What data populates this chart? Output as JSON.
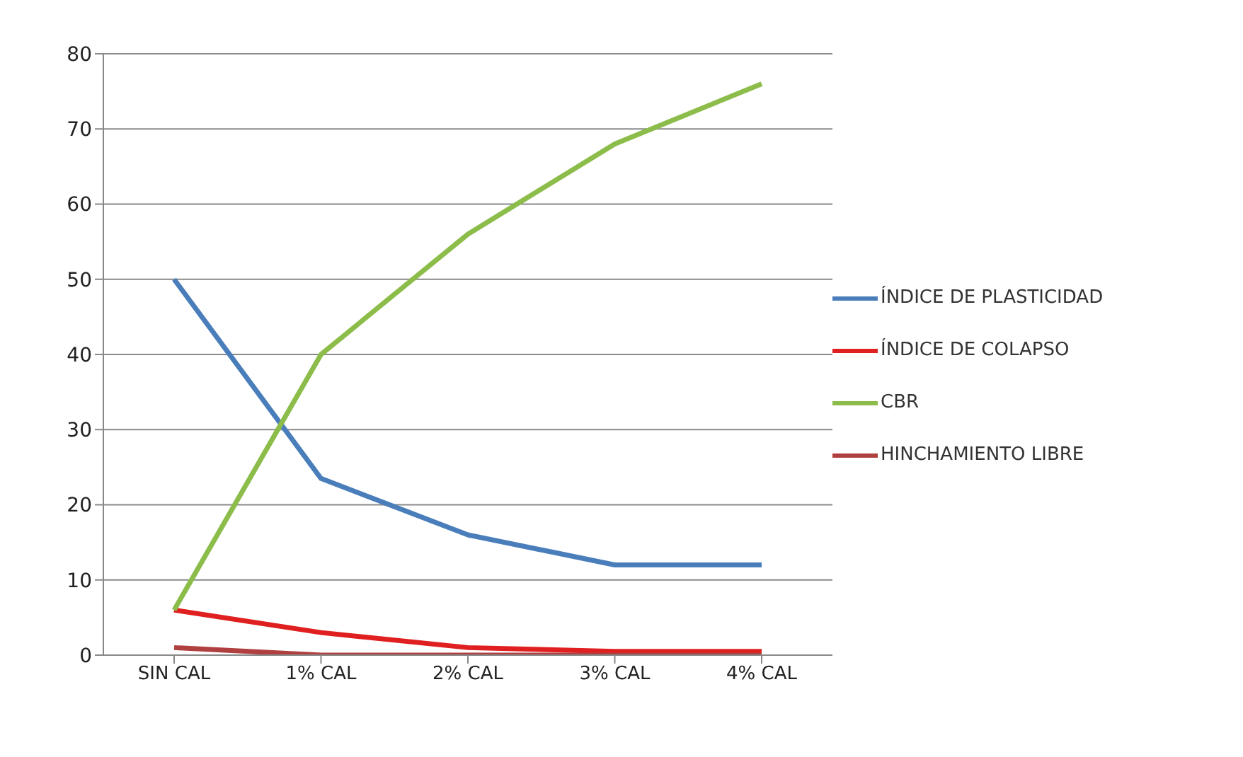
{
  "chart_data": {
    "type": "line",
    "categories": [
      "SIN CAL",
      "1% CAL",
      "2% CAL",
      "3% CAL",
      "4% CAL"
    ],
    "series": [
      {
        "name": "ÍNDICE DE PLASTICIDAD",
        "color": "#4a7ebb",
        "values": [
          50,
          23.5,
          16,
          12,
          12
        ]
      },
      {
        "name": "ÍNDICE DE COLAPSO",
        "color": "#e02020",
        "values": [
          6,
          3,
          1,
          0.5,
          0.5
        ]
      },
      {
        "name": "CBR",
        "color": "#8cbd4a",
        "values": [
          6,
          40,
          56,
          68,
          76
        ]
      },
      {
        "name": "HINCHAMIENTO  LIBRE",
        "color": "#b04040",
        "values": [
          1,
          0,
          0,
          0,
          0
        ]
      }
    ],
    "ylim": [
      0,
      80
    ],
    "yticks": [
      0,
      10,
      20,
      30,
      40,
      50,
      60,
      70,
      80
    ],
    "grid": "y",
    "legend": "right",
    "marker": "none",
    "line_style": "solid"
  }
}
